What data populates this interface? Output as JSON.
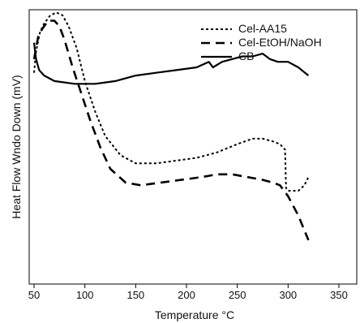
{
  "chart_data": {
    "type": "line",
    "xlabel": "Temperature °C",
    "ylabel": "Heat Flow Wndo Down (mV)",
    "xlim": [
      50,
      350
    ],
    "ylim": [
      0,
      100
    ],
    "x_ticks": [
      50,
      100,
      150,
      200,
      250,
      300,
      350
    ],
    "grid": false,
    "legend_position": "top-right",
    "series": [
      {
        "name": "Cel-AA15",
        "style": "dotted",
        "points": [
          [
            50,
            77
          ],
          [
            52,
            85
          ],
          [
            56,
            92
          ],
          [
            60,
            95
          ],
          [
            66,
            98
          ],
          [
            72,
            99
          ],
          [
            78,
            98
          ],
          [
            84,
            94
          ],
          [
            92,
            86
          ],
          [
            100,
            74
          ],
          [
            110,
            63
          ],
          [
            120,
            54
          ],
          [
            135,
            47
          ],
          [
            150,
            44
          ],
          [
            170,
            44
          ],
          [
            190,
            45
          ],
          [
            210,
            46
          ],
          [
            230,
            48
          ],
          [
            250,
            51
          ],
          [
            265,
            53
          ],
          [
            275,
            53
          ],
          [
            285,
            52
          ],
          [
            292,
            51
          ],
          [
            297,
            49
          ],
          [
            298,
            35
          ],
          [
            300,
            34
          ],
          [
            310,
            34
          ],
          [
            316,
            36
          ],
          [
            320,
            39
          ]
        ]
      },
      {
        "name": "Cel-EtOH/NaOH",
        "style": "dashed",
        "points": [
          [
            50,
            82
          ],
          [
            54,
            90
          ],
          [
            58,
            93
          ],
          [
            64,
            96
          ],
          [
            70,
            96
          ],
          [
            75,
            94
          ],
          [
            80,
            89
          ],
          [
            88,
            79
          ],
          [
            96,
            70
          ],
          [
            105,
            60
          ],
          [
            115,
            50
          ],
          [
            125,
            42
          ],
          [
            140,
            37
          ],
          [
            155,
            36
          ],
          [
            175,
            37
          ],
          [
            195,
            38
          ],
          [
            215,
            39
          ],
          [
            230,
            40
          ],
          [
            245,
            40
          ],
          [
            260,
            39
          ],
          [
            275,
            38
          ],
          [
            285,
            37
          ],
          [
            292,
            36
          ],
          [
            300,
            32
          ],
          [
            310,
            25
          ],
          [
            320,
            16
          ]
        ]
      },
      {
        "name": "CB",
        "style": "solid",
        "points": [
          [
            50,
            88
          ],
          [
            52,
            82
          ],
          [
            55,
            78
          ],
          [
            60,
            76
          ],
          [
            70,
            74
          ],
          [
            90,
            73
          ],
          [
            110,
            73
          ],
          [
            130,
            74
          ],
          [
            150,
            76
          ],
          [
            170,
            77
          ],
          [
            190,
            78
          ],
          [
            210,
            79
          ],
          [
            222,
            81
          ],
          [
            226,
            79
          ],
          [
            235,
            81
          ],
          [
            245,
            82
          ],
          [
            255,
            83
          ],
          [
            265,
            83
          ],
          [
            275,
            84
          ],
          [
            282,
            82
          ],
          [
            290,
            81
          ],
          [
            300,
            81
          ],
          [
            310,
            79
          ],
          [
            320,
            76
          ]
        ]
      }
    ]
  }
}
